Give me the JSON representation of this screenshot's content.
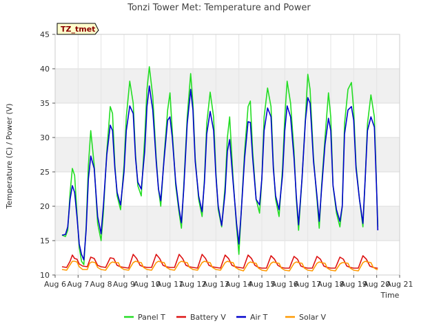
{
  "chart_data": {
    "type": "line",
    "title": "Tonzi Tower Met: Temperature and Power",
    "badge": "TZ_tmet",
    "xlabel": "Time",
    "ylabel": "Temperature (C) / Power (V)",
    "xlim": [
      6,
      21
    ],
    "ylim": [
      10,
      45
    ],
    "x_ticks": [
      6,
      7,
      8,
      9,
      10,
      11,
      12,
      13,
      14,
      15,
      16,
      17,
      18,
      19,
      20,
      21
    ],
    "x_tick_labels": [
      "Aug 6",
      "Aug 7",
      "Aug 8",
      "Aug 9",
      "Aug 10",
      "Aug 11",
      "Aug 12",
      "Aug 13",
      "Aug 14",
      "Aug 15",
      "Aug 16",
      "Aug 17",
      "Aug 18",
      "Aug 19",
      "Aug 20",
      "Aug 21"
    ],
    "y_ticks": [
      10,
      15,
      20,
      25,
      30,
      35,
      40,
      45
    ],
    "legend_position": "bottom-center",
    "series": [
      {
        "name": "Panel T",
        "color": "#22dd22",
        "x": [
          6.3,
          6.45,
          6.55,
          6.65,
          6.75,
          6.85,
          6.95,
          7.05,
          7.15,
          7.25,
          7.35,
          7.45,
          7.55,
          7.7,
          7.85,
          8.0,
          8.1,
          8.25,
          8.4,
          8.5,
          8.6,
          8.7,
          8.85,
          9.0,
          9.1,
          9.25,
          9.4,
          9.5,
          9.6,
          9.75,
          9.9,
          10.0,
          10.1,
          10.25,
          10.4,
          10.5,
          10.6,
          10.75,
          10.9,
          11.0,
          11.1,
          11.25,
          11.4,
          11.5,
          11.6,
          11.75,
          11.9,
          12.0,
          12.1,
          12.25,
          12.4,
          12.5,
          12.6,
          12.75,
          12.9,
          13.0,
          13.1,
          13.25,
          13.4,
          13.5,
          13.6,
          13.75,
          13.9,
          14.0,
          14.1,
          14.25,
          14.4,
          14.5,
          14.6,
          14.75,
          14.9,
          15.0,
          15.1,
          15.25,
          15.4,
          15.5,
          15.6,
          15.75,
          15.9,
          16.0,
          16.1,
          16.25,
          16.4,
          16.5,
          16.6,
          16.75,
          16.9,
          17.0,
          17.1,
          17.25,
          17.4,
          17.5,
          17.6,
          17.75,
          17.9,
          18.0,
          18.1,
          18.25,
          18.4,
          18.5,
          18.6,
          18.75,
          18.9,
          19.0,
          19.1,
          19.25,
          19.4,
          19.5,
          19.6,
          19.75,
          19.9,
          20.0,
          20.05
        ],
        "values": [
          15.8,
          15.6,
          16.5,
          22.0,
          25.5,
          24.5,
          19.0,
          14.0,
          12.0,
          11.5,
          17.0,
          26.0,
          31.0,
          26.0,
          17.5,
          15.0,
          19.0,
          28.0,
          34.5,
          33.5,
          26.0,
          21.5,
          19.5,
          26.0,
          33.0,
          38.2,
          35.0,
          27.5,
          23.0,
          21.5,
          30.0,
          37.0,
          40.3,
          36.0,
          27.0,
          22.5,
          20.0,
          27.5,
          34.0,
          36.5,
          31.0,
          23.0,
          19.0,
          16.8,
          23.0,
          33.0,
          39.3,
          35.0,
          27.0,
          21.0,
          18.5,
          24.0,
          32.0,
          36.6,
          33.0,
          25.0,
          19.5,
          17.0,
          23.0,
          30.0,
          33.0,
          24.0,
          17.0,
          13.0,
          19.0,
          28.0,
          34.5,
          35.3,
          28.0,
          21.0,
          19.0,
          24.0,
          33.0,
          37.2,
          34.5,
          26.0,
          21.0,
          18.5,
          25.5,
          33.0,
          38.2,
          35.0,
          28.0,
          21.0,
          16.5,
          24.0,
          33.0,
          39.2,
          37.0,
          27.0,
          21.0,
          16.8,
          23.0,
          30.0,
          36.5,
          33.0,
          23.0,
          19.0,
          17.0,
          20.0,
          32.0,
          37.0,
          38.0,
          34.0,
          26.0,
          21.0,
          17.0,
          24.0,
          32.0,
          36.2,
          33.0,
          22.0,
          17.0
        ]
      },
      {
        "name": "Battery V",
        "color": "#dd1111",
        "x": [
          6.3,
          6.5,
          6.65,
          6.75,
          6.85,
          6.95,
          7.05,
          7.2,
          7.4,
          7.55,
          7.7,
          7.85,
          8.0,
          8.2,
          8.4,
          8.55,
          8.7,
          8.85,
          9.0,
          9.2,
          9.4,
          9.55,
          9.7,
          9.85,
          10.0,
          10.2,
          10.4,
          10.55,
          10.7,
          10.85,
          11.0,
          11.2,
          11.4,
          11.55,
          11.7,
          11.85,
          12.0,
          12.2,
          12.4,
          12.55,
          12.7,
          12.85,
          13.0,
          13.2,
          13.4,
          13.55,
          13.7,
          13.85,
          14.0,
          14.2,
          14.4,
          14.55,
          14.7,
          14.85,
          15.0,
          15.2,
          15.4,
          15.55,
          15.7,
          15.85,
          16.0,
          16.2,
          16.4,
          16.55,
          16.7,
          16.85,
          17.0,
          17.2,
          17.4,
          17.55,
          17.7,
          17.85,
          18.0,
          18.2,
          18.4,
          18.55,
          18.7,
          18.85,
          19.0,
          19.2,
          19.4,
          19.55,
          19.7,
          19.85,
          20.0,
          20.05
        ],
        "values": [
          11.2,
          11.1,
          12.0,
          12.9,
          12.4,
          12.3,
          11.6,
          11.3,
          11.2,
          12.6,
          12.4,
          11.4,
          11.2,
          11.1,
          12.5,
          12.4,
          11.4,
          11.2,
          11.1,
          11.0,
          13.0,
          12.4,
          11.4,
          11.2,
          11.1,
          11.1,
          13.0,
          12.4,
          11.4,
          11.2,
          11.1,
          11.1,
          13.0,
          12.4,
          11.4,
          11.2,
          11.1,
          11.0,
          13.0,
          12.4,
          11.4,
          11.2,
          11.1,
          11.0,
          12.9,
          12.4,
          11.4,
          11.2,
          11.1,
          11.0,
          12.9,
          12.4,
          11.4,
          11.1,
          11.0,
          11.0,
          12.8,
          12.3,
          11.4,
          11.1,
          11.0,
          11.0,
          12.7,
          12.3,
          11.3,
          11.1,
          11.0,
          11.0,
          12.7,
          12.3,
          11.3,
          11.1,
          11.0,
          11.0,
          12.6,
          12.3,
          11.3,
          11.1,
          11.0,
          11.0,
          12.8,
          12.3,
          11.3,
          11.1,
          11.0,
          11.0
        ]
      },
      {
        "name": "Air T",
        "color": "#0000cc",
        "x": [
          6.3,
          6.45,
          6.55,
          6.65,
          6.75,
          6.85,
          6.95,
          7.05,
          7.15,
          7.25,
          7.35,
          7.45,
          7.55,
          7.7,
          7.85,
          8.0,
          8.1,
          8.25,
          8.4,
          8.5,
          8.6,
          8.7,
          8.85,
          9.0,
          9.1,
          9.25,
          9.4,
          9.5,
          9.6,
          9.75,
          9.9,
          10.0,
          10.1,
          10.25,
          10.4,
          10.5,
          10.6,
          10.75,
          10.9,
          11.0,
          11.1,
          11.25,
          11.4,
          11.5,
          11.6,
          11.75,
          11.9,
          12.0,
          12.1,
          12.25,
          12.4,
          12.5,
          12.6,
          12.75,
          12.9,
          13.0,
          13.1,
          13.25,
          13.4,
          13.5,
          13.6,
          13.75,
          13.9,
          14.0,
          14.1,
          14.25,
          14.4,
          14.5,
          14.6,
          14.75,
          14.9,
          15.0,
          15.1,
          15.25,
          15.4,
          15.5,
          15.6,
          15.75,
          15.9,
          16.0,
          16.1,
          16.25,
          16.4,
          16.5,
          16.6,
          16.75,
          16.9,
          17.0,
          17.1,
          17.25,
          17.4,
          17.5,
          17.6,
          17.75,
          17.9,
          18.0,
          18.1,
          18.25,
          18.4,
          18.5,
          18.6,
          18.75,
          18.9,
          19.0,
          19.1,
          19.25,
          19.4,
          19.5,
          19.6,
          19.75,
          19.9,
          20.0,
          20.05
        ],
        "values": [
          15.8,
          15.9,
          17.0,
          21.0,
          23.0,
          22.0,
          18.5,
          14.5,
          13.0,
          12.2,
          16.5,
          24.0,
          27.3,
          25.5,
          18.5,
          16.0,
          20.0,
          27.5,
          31.8,
          31.0,
          25.5,
          22.0,
          20.2,
          25.0,
          31.0,
          34.6,
          33.5,
          27.0,
          23.5,
          22.5,
          28.0,
          34.5,
          37.5,
          34.0,
          26.5,
          22.5,
          20.8,
          27.0,
          32.5,
          33.0,
          30.0,
          23.5,
          19.5,
          17.6,
          22.5,
          32.0,
          37.0,
          34.0,
          26.5,
          21.5,
          19.2,
          23.5,
          30.5,
          33.8,
          31.0,
          24.5,
          20.0,
          17.2,
          22.0,
          28.0,
          29.7,
          23.5,
          17.5,
          14.5,
          19.0,
          27.0,
          32.3,
          32.2,
          27.0,
          21.0,
          20.2,
          24.0,
          31.0,
          34.3,
          33.0,
          25.5,
          21.5,
          19.5,
          24.5,
          31.0,
          34.6,
          33.0,
          27.0,
          21.5,
          17.3,
          24.0,
          32.5,
          35.8,
          35.0,
          26.5,
          21.5,
          17.8,
          22.5,
          29.0,
          32.8,
          31.0,
          23.0,
          19.5,
          17.8,
          20.0,
          30.5,
          34.0,
          34.5,
          32.5,
          25.5,
          21.0,
          17.5,
          24.0,
          31.0,
          33.0,
          31.5,
          22.0,
          16.5
        ]
      },
      {
        "name": "Solar V",
        "color": "#ff9900",
        "x": [
          6.3,
          6.5,
          6.65,
          6.75,
          6.85,
          6.95,
          7.05,
          7.2,
          7.4,
          7.5,
          7.6,
          7.75,
          7.85,
          8.0,
          8.2,
          8.4,
          8.5,
          8.6,
          8.75,
          8.85,
          9.0,
          9.2,
          9.4,
          9.5,
          9.6,
          9.75,
          9.85,
          10.0,
          10.2,
          10.4,
          10.5,
          10.6,
          10.75,
          10.85,
          11.0,
          11.2,
          11.4,
          11.5,
          11.6,
          11.75,
          11.85,
          12.0,
          12.2,
          12.4,
          12.5,
          12.6,
          12.75,
          12.85,
          13.0,
          13.2,
          13.4,
          13.5,
          13.6,
          13.75,
          13.85,
          14.0,
          14.2,
          14.4,
          14.5,
          14.6,
          14.75,
          14.85,
          15.0,
          15.2,
          15.4,
          15.5,
          15.6,
          15.75,
          15.85,
          16.0,
          16.2,
          16.4,
          16.5,
          16.6,
          16.75,
          16.85,
          17.0,
          17.2,
          17.4,
          17.5,
          17.6,
          17.75,
          17.85,
          18.0,
          18.2,
          18.4,
          18.5,
          18.6,
          18.75,
          18.85,
          19.0,
          19.2,
          19.4,
          19.5,
          19.6,
          19.75,
          19.85,
          20.0,
          20.05
        ],
        "values": [
          10.8,
          10.7,
          11.5,
          12.0,
          12.0,
          11.9,
          11.2,
          10.8,
          10.8,
          11.7,
          11.9,
          11.8,
          11.1,
          10.8,
          10.7,
          11.7,
          11.9,
          11.8,
          11.8,
          11.1,
          10.8,
          10.7,
          11.8,
          12.0,
          11.9,
          11.8,
          11.1,
          10.8,
          10.7,
          11.8,
          12.0,
          11.9,
          11.8,
          11.1,
          10.8,
          10.7,
          11.8,
          12.0,
          11.9,
          11.8,
          11.1,
          10.8,
          10.7,
          11.8,
          12.0,
          11.9,
          11.8,
          11.1,
          10.8,
          10.7,
          11.8,
          12.0,
          11.9,
          11.8,
          11.1,
          10.8,
          10.6,
          11.7,
          11.9,
          11.8,
          11.7,
          11.0,
          10.7,
          10.6,
          11.7,
          11.9,
          11.8,
          11.7,
          11.0,
          10.7,
          10.6,
          11.7,
          11.9,
          11.8,
          11.7,
          11.0,
          10.7,
          10.6,
          11.7,
          11.9,
          11.8,
          11.7,
          11.0,
          10.7,
          10.6,
          11.6,
          11.8,
          11.8,
          11.7,
          11.0,
          10.7,
          10.6,
          11.8,
          12.0,
          11.9,
          11.8,
          11.1,
          10.8,
          10.8
        ]
      }
    ]
  }
}
